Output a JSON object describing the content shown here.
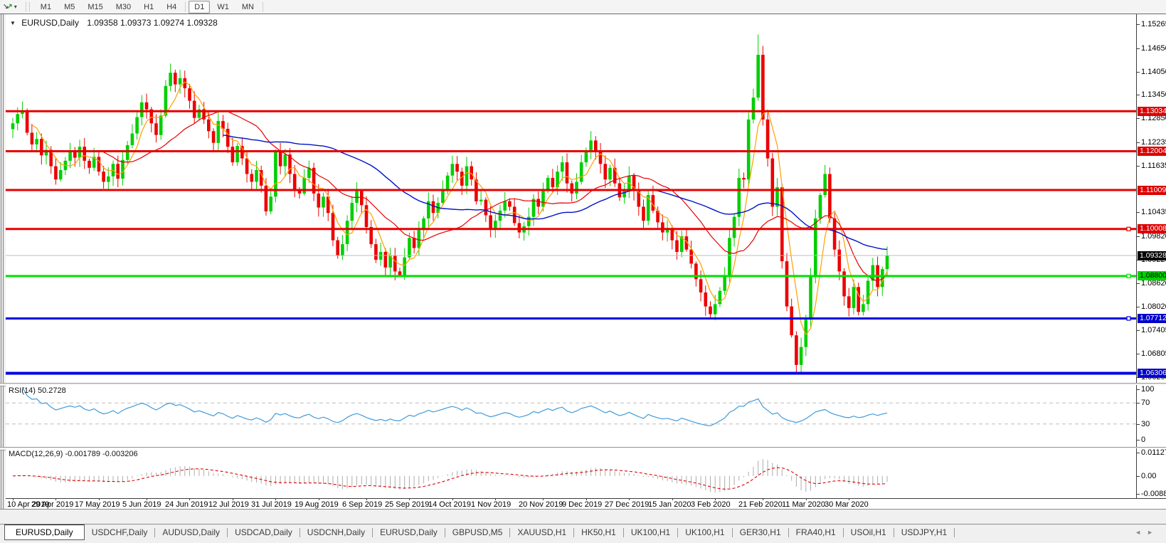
{
  "toolbar": {
    "icon_arrow_down": "↘",
    "icon_arrow_up": "↗",
    "dropdown_glyph": "▾",
    "timeframes": [
      "M1",
      "M5",
      "M15",
      "M30",
      "H1",
      "H4",
      "D1",
      "W1",
      "MN"
    ],
    "active_timeframe": "D1"
  },
  "chart_header": {
    "collapse_icon": "▼",
    "symbol": "EURUSD,Daily",
    "ohlc": "1.09358 1.09373 1.09274 1.09328"
  },
  "chart_data": {
    "type": "candlestick",
    "symbol": "EURUSD",
    "timeframe": "Daily",
    "price_range": [
      1.06059,
      1.15521
    ],
    "y_ticks": [
      "1.15265",
      "1.14650",
      "1.14050",
      "1.13450",
      "1.12850",
      "1.12235",
      "1.11635",
      "1.10435",
      "1.09820",
      "1.09220",
      "1.08620",
      "1.08020",
      "1.07405",
      "1.06805",
      "1.06205"
    ],
    "candle_up_color": "#00CF00",
    "candle_down_color": "#EC0000",
    "closes": [
      1.1272,
      1.1296,
      1.1305,
      1.1248,
      1.1218,
      1.1232,
      1.119,
      1.1204,
      1.1162,
      1.1128,
      1.1152,
      1.1176,
      1.1198,
      1.1184,
      1.1212,
      1.1176,
      1.1158,
      1.1186,
      1.1148,
      1.1122,
      1.1136,
      1.1168,
      1.113,
      1.1178,
      1.1216,
      1.1246,
      1.1288,
      1.1326,
      1.1308,
      1.1272,
      1.1242,
      1.1292,
      1.1368,
      1.1402,
      1.1372,
      1.1388,
      1.1362,
      1.133,
      1.1286,
      1.1308,
      1.1282,
      1.1252,
      1.1222,
      1.1278,
      1.1258,
      1.1212,
      1.1172,
      1.1214,
      1.1182,
      1.1142,
      1.1122,
      1.1152,
      1.1112,
      1.1046,
      1.1084,
      1.1198,
      1.1162,
      1.1192,
      1.1142,
      1.1102,
      1.1092,
      1.1132,
      1.1158,
      1.1092,
      1.1056,
      1.1084,
      1.1042,
      1.0972,
      1.0932,
      1.0962,
      1.1022,
      1.1068,
      1.1098,
      1.1062,
      1.1006,
      1.0962,
      1.0922,
      1.0942,
      1.0902,
      1.0932,
      1.0892,
      1.0882,
      1.0928,
      1.0978,
      1.0952,
      1.0998,
      1.1028,
      1.1072,
      1.1042,
      1.1068,
      1.1102,
      1.1138,
      1.1168,
      1.1148,
      1.1112,
      1.1162,
      1.1128,
      1.1072,
      1.1076,
      1.1036,
      1.1002,
      1.1022,
      1.1048,
      1.1072,
      1.1058,
      1.1016,
      1.0992,
      1.1008,
      1.1032,
      1.1078,
      1.1058,
      1.1098,
      1.1132,
      1.1108,
      1.1148,
      1.1172,
      1.1118,
      1.1092,
      1.1122,
      1.1172,
      1.1198,
      1.1228,
      1.1202,
      1.1168,
      1.1128,
      1.1158,
      1.1118,
      1.1082,
      1.1102,
      1.1138,
      1.1098,
      1.1058,
      1.1022,
      1.1088,
      1.1048,
      1.1018,
      1.0992,
      1.1002,
      1.0972,
      1.0942,
      1.0982,
      1.0948,
      1.0912,
      1.0872,
      1.0838,
      1.0802,
      1.0782,
      1.0808,
      1.0842,
      1.0882,
      1.0978,
      1.1032,
      1.1132,
      1.1128,
      1.1282,
      1.1338,
      1.1448,
      1.1282,
      1.1182,
      1.1058,
      1.1108,
      1.0918,
      1.0802,
      1.0728,
      1.0652,
      1.0698,
      1.0768,
      1.0882,
      1.1028,
      1.1088,
      1.1142,
      1.1028,
      1.0948,
      1.0892,
      1.0828,
      1.0798,
      1.0852,
      1.0788,
      1.0808,
      1.0868,
      1.0908,
      1.0852,
      1.0898,
      1.09328
    ],
    "wick_overrides": {
      "81": {
        "low": 1.0879
      },
      "146": {
        "low": 1.0774
      },
      "156": {
        "high": 1.15
      },
      "164": {
        "low": 1.0632
      }
    },
    "dates": [
      "10 Apr 2019",
      "29 Apr 2019",
      "17 May 2019",
      "5 Jun 2019",
      "24 Jun 2019",
      "12 Jul 2019",
      "31 Jul 2019",
      "19 Aug 2019",
      "6 Sep 2019",
      "25 Sep 2019",
      "14 Oct 2019",
      "1 Nov 2019",
      "20 Nov 2019",
      "9 Dec 2019",
      "27 Dec 2019",
      "15 Jan 2020",
      "3 Feb 2020",
      "21 Feb 2020",
      "11 Mar 2020",
      "30 Mar 2020"
    ],
    "levels": [
      {
        "value": 1.13034,
        "label": "1.13034",
        "line_color": "#E60000",
        "label_bg": "#DC0000",
        "label_fg": "#ffffff",
        "width": 3,
        "handle": false
      },
      {
        "value": 1.12004,
        "label": "1.12004",
        "line_color": "#E60000",
        "label_bg": "#DC0000",
        "label_fg": "#ffffff",
        "width": 3,
        "handle": false
      },
      {
        "value": 1.11009,
        "label": "1.11009",
        "line_color": "#E60000",
        "label_bg": "#DC0000",
        "label_fg": "#ffffff",
        "width": 3,
        "handle": false
      },
      {
        "value": 1.10008,
        "label": "1.10008",
        "line_color": "#E60000",
        "label_bg": "#DC0000",
        "label_fg": "#ffffff",
        "width": 3,
        "handle": true
      },
      {
        "value": 1.088,
        "label": "1.08800",
        "line_color": "#00E000",
        "label_bg": "#00D400",
        "label_fg": "#000000",
        "width": 3,
        "handle": true
      },
      {
        "value": 1.07712,
        "label": "1.07712",
        "line_color": "#0000E0",
        "label_bg": "#0000CC",
        "label_fg": "#ffffff",
        "width": 3,
        "handle": true
      },
      {
        "value": 1.06306,
        "label": "1.06306",
        "line_color": "#0000E0",
        "label_bg": "#0000CC",
        "label_fg": "#ffffff",
        "width": 4,
        "handle": false
      }
    ],
    "current_price": {
      "value": 1.09328,
      "label": "1.09328",
      "line_color": "#BEBEBE",
      "label_bg": "#000000",
      "label_fg": "#ffffff"
    },
    "moving_averages": [
      {
        "name": "fast",
        "period": 5,
        "color": "#FFA000"
      },
      {
        "name": "medium",
        "period": 20,
        "color": "#E50000"
      },
      {
        "name": "slow",
        "period": 45,
        "color": "#0012C8"
      }
    ],
    "rsi": {
      "title": "RSI(14) 50.2728",
      "period": 14,
      "value": "50.2728",
      "line_color": "#3E9BDC",
      "grid_levels": [
        70,
        30
      ],
      "axis_ticks": [
        "100",
        "70",
        "30",
        "0"
      ],
      "range": [
        0,
        100
      ]
    },
    "macd": {
      "title": "MACD(12,26,9) -0.001789 -0.003206",
      "params": "12,26,9",
      "macd_value": "-0.001789",
      "signal_value": "-0.003206",
      "hist_color": "#ADADAD",
      "signal_color": "#E00000",
      "axis_ticks": [
        "0.011277",
        "0.00",
        "-0.008845"
      ],
      "range": [
        -0.008845,
        0.011277
      ]
    }
  },
  "tabbar": {
    "tabs": [
      "EURUSD,Daily",
      "USDCHF,Daily",
      "AUDUSD,Daily",
      "USDCAD,Daily",
      "USDCNH,Daily",
      "EURUSD,Daily",
      "GBPUSD,M5",
      "XAUUSD,H1",
      "HK50,H1",
      "UK100,H1",
      "UK100,H1",
      "GER30,H1",
      "FRA40,H1",
      "USOil,H1",
      "USDJPY,H1"
    ],
    "active_index": 0,
    "scroll_left_icon": "◄",
    "scroll_right_icon": "►"
  }
}
